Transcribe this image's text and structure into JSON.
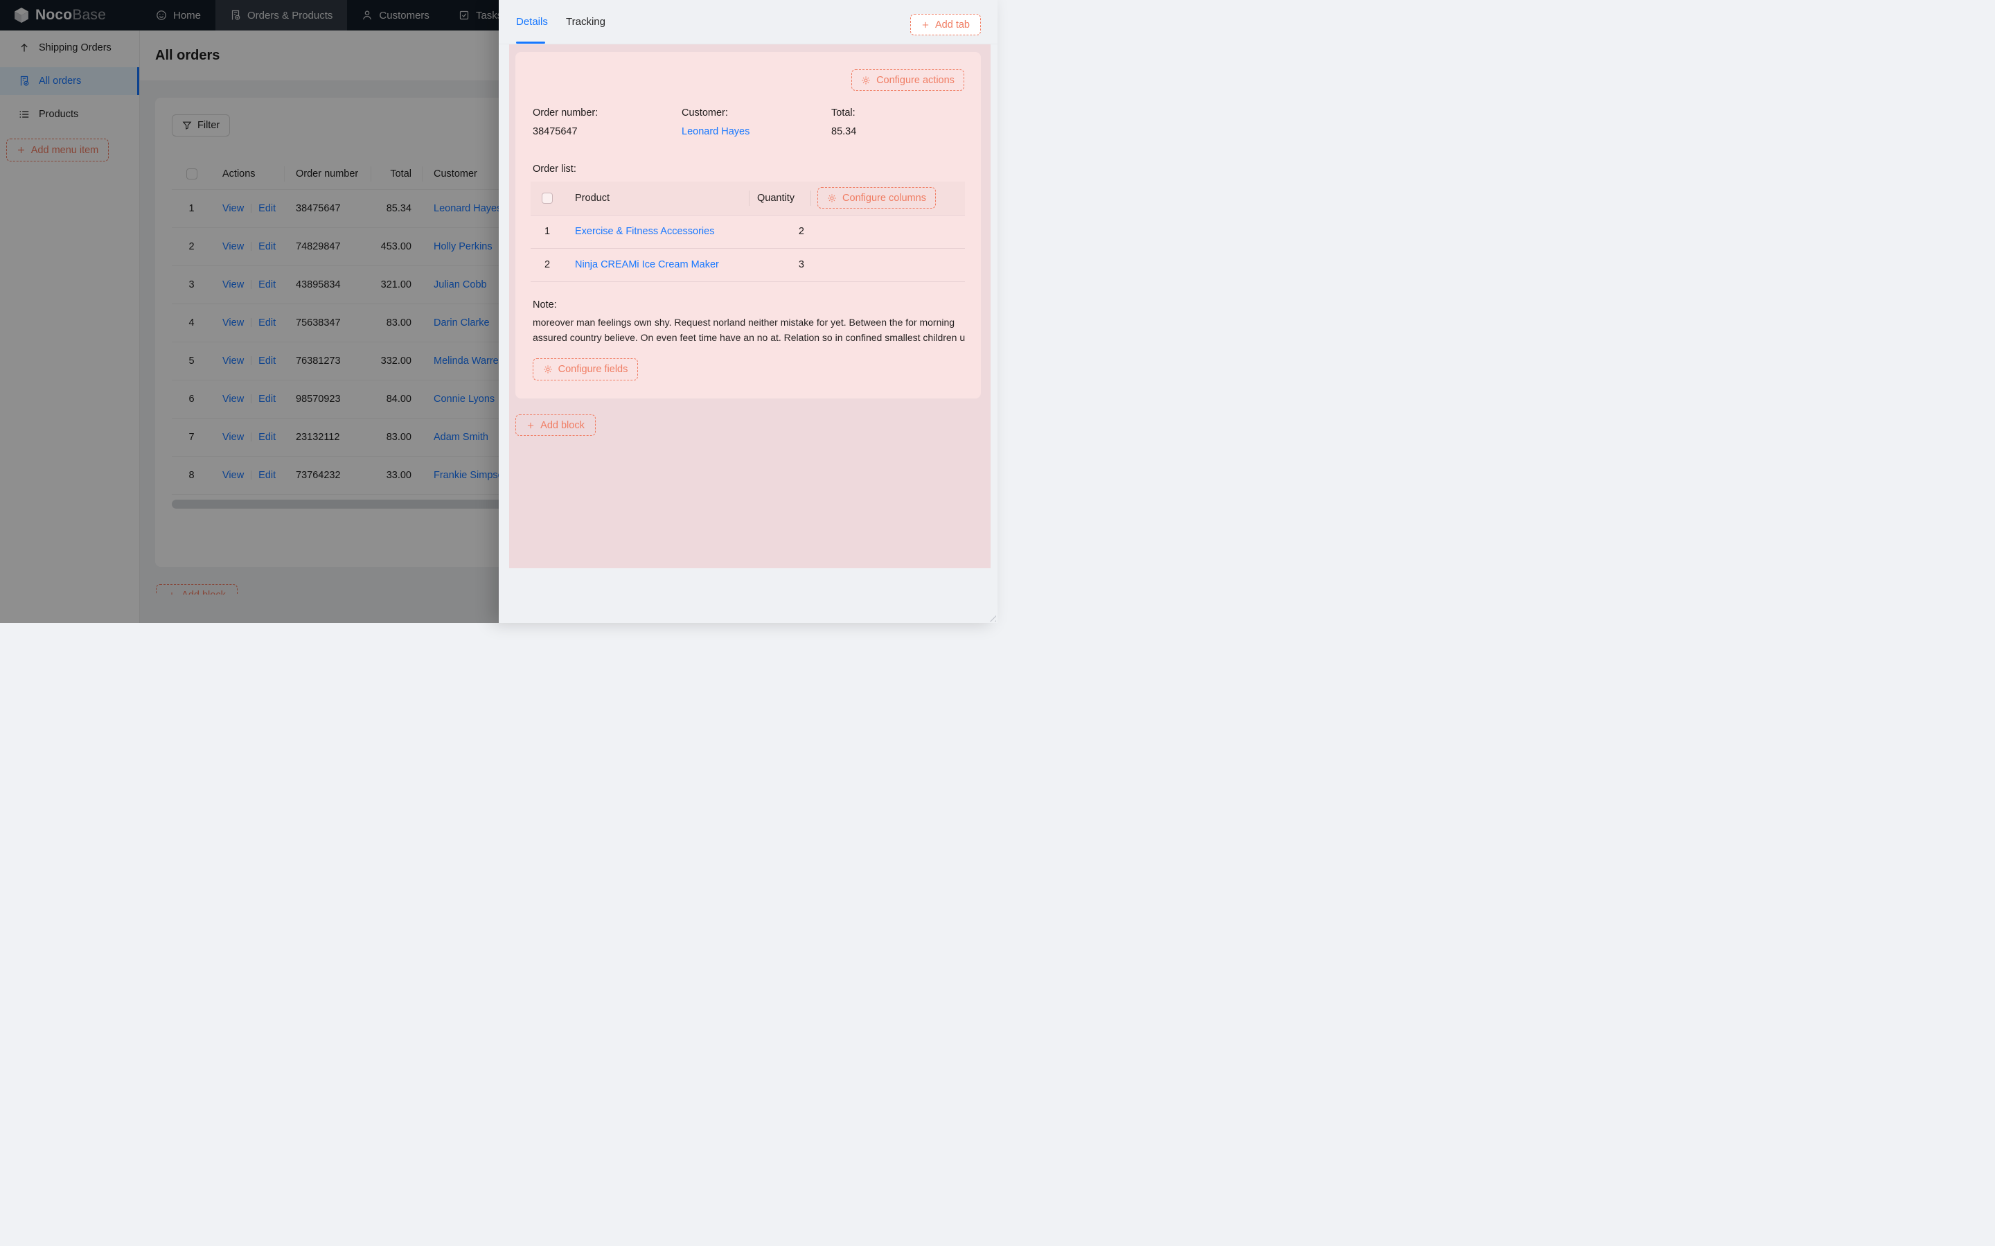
{
  "topnav": {
    "logo_bold": "Noco",
    "logo_light": "Base",
    "items": [
      {
        "label": "Home",
        "icon": "smile",
        "active": false
      },
      {
        "label": "Orders & Products",
        "icon": "file-check",
        "active": true
      },
      {
        "label": "Customers",
        "icon": "user",
        "active": false
      },
      {
        "label": "Tasks",
        "icon": "check-square",
        "active": false
      }
    ]
  },
  "sidebar": {
    "items": [
      {
        "label": "Shipping Orders",
        "icon": "arrow-up",
        "active": false
      },
      {
        "label": "All orders",
        "icon": "file-check",
        "active": true
      },
      {
        "label": "Products",
        "icon": "list",
        "active": false
      }
    ],
    "add_menu_item_label": "Add menu item"
  },
  "page": {
    "title": "All orders",
    "filter_label": "Filter",
    "add_block_label": "Add block"
  },
  "orders_table": {
    "columns": [
      "Actions",
      "Order number",
      "Total",
      "Customer"
    ],
    "action_labels": [
      "View",
      "Edit"
    ],
    "rows": [
      {
        "index": 1,
        "order_number": "38475647",
        "total": "85.34",
        "customer": "Leonard Hayes"
      },
      {
        "index": 2,
        "order_number": "74829847",
        "total": "453.00",
        "customer": "Holly Perkins"
      },
      {
        "index": 3,
        "order_number": "43895834",
        "total": "321.00",
        "customer": "Julian Cobb"
      },
      {
        "index": 4,
        "order_number": "75638347",
        "total": "83.00",
        "customer": "Darin Clarke"
      },
      {
        "index": 5,
        "order_number": "76381273",
        "total": "332.00",
        "customer": "Melinda Warren"
      },
      {
        "index": 6,
        "order_number": "98570923",
        "total": "84.00",
        "customer": "Connie Lyons"
      },
      {
        "index": 7,
        "order_number": "23132112",
        "total": "83.00",
        "customer": "Adam Smith"
      },
      {
        "index": 8,
        "order_number": "73764232",
        "total": "33.00",
        "customer": "Frankie Simpson"
      }
    ]
  },
  "drawer": {
    "tabs": [
      {
        "label": "Details",
        "active": true
      },
      {
        "label": "Tracking",
        "active": false
      }
    ],
    "add_tab_label": "Add tab",
    "configure_actions_label": "Configure actions",
    "fields": [
      {
        "label": "Order number:",
        "value": "38475647",
        "type": "text"
      },
      {
        "label": "Customer:",
        "value": "Leonard Hayes",
        "type": "link"
      },
      {
        "label": "Total:",
        "value": "85.34",
        "type": "text"
      }
    ],
    "order_list": {
      "label": "Order list:",
      "columns": [
        "Product",
        "Quantity"
      ],
      "configure_columns_label": "Configure columns",
      "rows": [
        {
          "index": 1,
          "product": "Exercise & Fitness Accessories",
          "quantity": "2"
        },
        {
          "index": 2,
          "product": "Ninja CREAMi Ice Cream Maker",
          "quantity": "3"
        }
      ]
    },
    "note": {
      "label": "Note:",
      "text": "moreover man feelings own shy. Request norland neither mistake for yet. Between the for morning assured country believe. On even feet time have an no at. Relation so in confined smallest children u"
    },
    "configure_fields_label": "Configure fields",
    "add_block_label": "Add block"
  },
  "colors": {
    "accent_blue": "#1677ff",
    "designer_orange": "#f07c62",
    "inner_block_pink": "#fae3e3",
    "outer_block_pink": "#eed9dc",
    "nav_bg": "#121b26",
    "drawer_bg": "#eff1f4"
  }
}
